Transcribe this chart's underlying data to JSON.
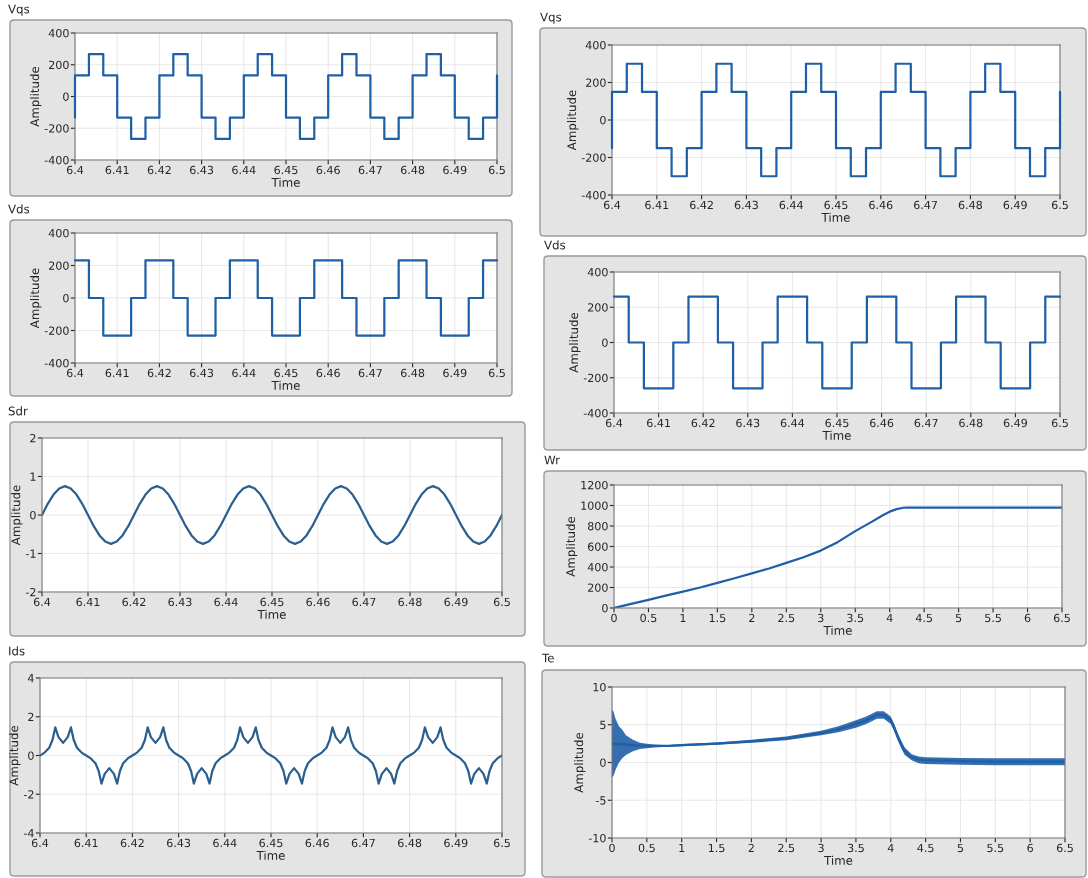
{
  "chart_data": [
    {
      "type": "step",
      "title": "Vqs",
      "xlabel": "Time",
      "ylabel": "Amplitude",
      "xlim": [
        6.4,
        6.5
      ],
      "xticks": [
        6.4,
        6.41,
        6.42,
        6.43,
        6.44,
        6.45,
        6.46,
        6.47,
        6.48,
        6.49,
        6.5
      ],
      "ylim": [
        -400,
        400
      ],
      "yticks": [
        -400,
        -200,
        0,
        200,
        400
      ],
      "grid": true,
      "x": [
        6.4,
        6.4,
        6.4033,
        6.4067,
        6.41,
        6.4133,
        6.4167,
        6.42,
        6.4233,
        6.4267,
        6.43,
        6.4333,
        6.4367,
        6.44,
        6.4433,
        6.4467,
        6.45,
        6.4533,
        6.4567,
        6.46,
        6.4633,
        6.4667,
        6.47,
        6.4733,
        6.4767,
        6.48,
        6.4833,
        6.4867,
        6.49,
        6.4933,
        6.4967,
        6.5
      ],
      "series": [
        {
          "color": "#1f5fa6",
          "values": [
            -133,
            133,
            267,
            133,
            -133,
            -267,
            -133,
            133,
            267,
            133,
            -133,
            -267,
            -133,
            133,
            267,
            133,
            -133,
            -267,
            -133,
            133,
            267,
            133,
            -133,
            -267,
            -133,
            133,
            267,
            133,
            -133,
            -267,
            -133,
            133
          ]
        }
      ]
    },
    {
      "type": "step",
      "title": "Vds",
      "xlabel": "Time",
      "ylabel": "Amplitude",
      "xlim": [
        6.4,
        6.5
      ],
      "xticks": [
        6.4,
        6.41,
        6.42,
        6.43,
        6.44,
        6.45,
        6.46,
        6.47,
        6.48,
        6.49,
        6.5
      ],
      "ylim": [
        -400,
        400
      ],
      "yticks": [
        -400,
        -200,
        0,
        200,
        400
      ],
      "grid": true,
      "x": [
        6.4,
        6.4033,
        6.4067,
        6.41,
        6.4133,
        6.4167,
        6.42,
        6.4233,
        6.4267,
        6.43,
        6.4333,
        6.4367,
        6.44,
        6.4433,
        6.4467,
        6.45,
        6.4533,
        6.4567,
        6.46,
        6.4633,
        6.4667,
        6.47,
        6.4733,
        6.4767,
        6.48,
        6.4833,
        6.4867,
        6.49,
        6.4933,
        6.4967,
        6.5
      ],
      "series": [
        {
          "color": "#1f5fa6",
          "values": [
            231,
            0,
            -231,
            -231,
            0,
            231,
            231,
            0,
            -231,
            -231,
            0,
            231,
            231,
            0,
            -231,
            -231,
            0,
            231,
            231,
            0,
            -231,
            -231,
            0,
            231,
            231,
            0,
            -231,
            -231,
            0,
            231,
            231
          ]
        }
      ]
    },
    {
      "type": "line",
      "title": "Sdr",
      "xlabel": "Time",
      "ylabel": "Amplitude",
      "xlim": [
        6.4,
        6.5
      ],
      "xticks": [
        6.4,
        6.41,
        6.42,
        6.43,
        6.44,
        6.45,
        6.46,
        6.47,
        6.48,
        6.49,
        6.5
      ],
      "ylim": [
        -2,
        2
      ],
      "yticks": [
        -2,
        -1,
        0,
        1,
        2
      ],
      "grid": true,
      "x": [
        6.4,
        6.40125,
        6.4025,
        6.40375,
        6.405,
        6.40625,
        6.4075,
        6.40875,
        6.41,
        6.41125,
        6.4125,
        6.41375,
        6.415,
        6.41625,
        6.4175,
        6.41875,
        6.42,
        6.42125,
        6.4225,
        6.42375,
        6.425,
        6.42625,
        6.4275,
        6.42875,
        6.43,
        6.43125,
        6.4325,
        6.43375,
        6.435,
        6.43625,
        6.4375,
        6.43875,
        6.44,
        6.44125,
        6.4425,
        6.44375,
        6.445,
        6.44625,
        6.4475,
        6.44875,
        6.45,
        6.45125,
        6.4525,
        6.45375,
        6.455,
        6.45625,
        6.4575,
        6.45875,
        6.46,
        6.46125,
        6.4625,
        6.46375,
        6.465,
        6.46625,
        6.4675,
        6.46875,
        6.47,
        6.47125,
        6.4725,
        6.47375,
        6.475,
        6.47625,
        6.4775,
        6.47875,
        6.48,
        6.48125,
        6.4825,
        6.48375,
        6.485,
        6.48625,
        6.4875,
        6.48875,
        6.49,
        6.49125,
        6.4925,
        6.49375,
        6.495,
        6.49625,
        6.4975,
        6.49875,
        6.5
      ],
      "series": [
        {
          "color": "#2a5f8f",
          "values": [
            0,
            0.29,
            0.53,
            0.69,
            0.75,
            0.69,
            0.53,
            0.29,
            0,
            -0.29,
            -0.53,
            -0.69,
            -0.75,
            -0.69,
            -0.53,
            -0.29,
            0,
            0.29,
            0.53,
            0.69,
            0.75,
            0.69,
            0.53,
            0.29,
            0,
            -0.29,
            -0.53,
            -0.69,
            -0.75,
            -0.69,
            -0.53,
            -0.29,
            0,
            0.29,
            0.53,
            0.69,
            0.75,
            0.69,
            0.53,
            0.29,
            0,
            -0.29,
            -0.53,
            -0.69,
            -0.75,
            -0.69,
            -0.53,
            -0.29,
            0,
            0.29,
            0.53,
            0.69,
            0.75,
            0.69,
            0.53,
            0.29,
            0,
            -0.29,
            -0.53,
            -0.69,
            -0.75,
            -0.69,
            -0.53,
            -0.29,
            0,
            0.29,
            0.53,
            0.69,
            0.75,
            0.69,
            0.53,
            0.29,
            0,
            -0.29,
            -0.53,
            -0.69,
            -0.75,
            -0.69,
            -0.53,
            -0.29,
            0
          ]
        }
      ]
    },
    {
      "type": "line",
      "title": "Ids",
      "xlabel": "Time",
      "ylabel": "Amplitude",
      "xlim": [
        6.4,
        6.5
      ],
      "xticks": [
        6.4,
        6.41,
        6.42,
        6.43,
        6.44,
        6.45,
        6.46,
        6.47,
        6.48,
        6.49,
        6.5
      ],
      "ylim": [
        -4,
        4
      ],
      "yticks": [
        -4,
        -2,
        0,
        2,
        4
      ],
      "grid": true,
      "x": [
        6.4,
        6.401,
        6.402,
        6.4027,
        6.4033,
        6.404,
        6.405,
        6.406,
        6.4067,
        6.4073,
        6.408,
        6.409,
        6.41,
        6.411,
        6.412,
        6.4127,
        6.4133,
        6.414,
        6.415,
        6.416,
        6.4167,
        6.4173,
        6.418,
        6.419,
        6.42,
        6.421,
        6.422,
        6.4227,
        6.4233,
        6.424,
        6.425,
        6.426,
        6.4267,
        6.4273,
        6.428,
        6.429,
        6.43,
        6.431,
        6.432,
        6.4327,
        6.4333,
        6.434,
        6.435,
        6.436,
        6.4367,
        6.4373,
        6.438,
        6.439,
        6.44,
        6.441,
        6.442,
        6.4427,
        6.4433,
        6.444,
        6.445,
        6.446,
        6.4467,
        6.4473,
        6.448,
        6.449,
        6.45,
        6.451,
        6.452,
        6.4527,
        6.4533,
        6.454,
        6.455,
        6.456,
        6.4567,
        6.4573,
        6.458,
        6.459,
        6.46,
        6.461,
        6.462,
        6.4627,
        6.4633,
        6.464,
        6.465,
        6.466,
        6.4667,
        6.4673,
        6.468,
        6.469,
        6.47,
        6.471,
        6.472,
        6.4727,
        6.4733,
        6.474,
        6.475,
        6.476,
        6.4767,
        6.4773,
        6.478,
        6.479,
        6.48,
        6.481,
        6.482,
        6.4827,
        6.4833,
        6.484,
        6.485,
        6.486,
        6.4867,
        6.4873,
        6.488,
        6.489,
        6.49,
        6.491,
        6.492,
        6.4927,
        6.4933,
        6.494,
        6.495,
        6.496,
        6.4967,
        6.4973,
        6.498,
        6.499,
        6.5
      ],
      "series": [
        {
          "color": "#2a5f8f",
          "values": [
            0,
            0.15,
            0.4,
            0.8,
            1.45,
            0.95,
            0.65,
            0.95,
            1.45,
            0.8,
            0.4,
            0.15,
            0,
            -0.15,
            -0.4,
            -0.8,
            -1.45,
            -0.95,
            -0.65,
            -0.95,
            -1.45,
            -0.8,
            -0.4,
            -0.15,
            0,
            0.15,
            0.4,
            0.8,
            1.45,
            0.95,
            0.65,
            0.95,
            1.45,
            0.8,
            0.4,
            0.15,
            0,
            -0.15,
            -0.4,
            -0.8,
            -1.45,
            -0.95,
            -0.65,
            -0.95,
            -1.45,
            -0.8,
            -0.4,
            -0.15,
            0,
            0.15,
            0.4,
            0.8,
            1.45,
            0.95,
            0.65,
            0.95,
            1.45,
            0.8,
            0.4,
            0.15,
            0,
            -0.15,
            -0.4,
            -0.8,
            -1.45,
            -0.95,
            -0.65,
            -0.95,
            -1.45,
            -0.8,
            -0.4,
            -0.15,
            0,
            0.15,
            0.4,
            0.8,
            1.45,
            0.95,
            0.65,
            0.95,
            1.45,
            0.8,
            0.4,
            0.15,
            0,
            -0.15,
            -0.4,
            -0.8,
            -1.45,
            -0.95,
            -0.65,
            -0.95,
            -1.45,
            -0.8,
            -0.4,
            -0.15,
            0,
            0.15,
            0.4,
            0.8,
            1.45,
            0.95,
            0.65,
            0.95,
            1.45,
            0.8,
            0.4,
            0.15,
            0,
            -0.15,
            -0.4,
            -0.8,
            -1.45,
            -0.95,
            -0.65,
            -0.95,
            -1.45,
            -0.8,
            -0.4,
            -0.15,
            0
          ]
        }
      ]
    },
    {
      "type": "step",
      "title": "Vqs",
      "xlabel": "Time",
      "ylabel": "Amplitude",
      "xlim": [
        6.4,
        6.5
      ],
      "xticks": [
        6.4,
        6.41,
        6.42,
        6.43,
        6.44,
        6.45,
        6.46,
        6.47,
        6.48,
        6.49,
        6.5
      ],
      "ylim": [
        -400,
        400
      ],
      "yticks": [
        -400,
        -200,
        0,
        200,
        400
      ],
      "grid": true,
      "x": [
        6.4,
        6.4,
        6.4033,
        6.4067,
        6.41,
        6.4133,
        6.4167,
        6.42,
        6.4233,
        6.4267,
        6.43,
        6.4333,
        6.4367,
        6.44,
        6.4433,
        6.4467,
        6.45,
        6.4533,
        6.4567,
        6.46,
        6.4633,
        6.4667,
        6.47,
        6.4733,
        6.4767,
        6.48,
        6.4833,
        6.4867,
        6.49,
        6.4933,
        6.4967,
        6.5
      ],
      "series": [
        {
          "color": "#1f5fa6",
          "values": [
            -150,
            150,
            300,
            150,
            -150,
            -300,
            -150,
            150,
            300,
            150,
            -150,
            -300,
            -150,
            150,
            300,
            150,
            -150,
            -300,
            -150,
            150,
            300,
            150,
            -150,
            -300,
            -150,
            150,
            300,
            150,
            -150,
            -300,
            -150,
            150
          ]
        }
      ]
    },
    {
      "type": "step",
      "title": "Vds",
      "xlabel": "Time",
      "ylabel": "Amplitude",
      "xlim": [
        6.4,
        6.5
      ],
      "xticks": [
        6.4,
        6.41,
        6.42,
        6.43,
        6.44,
        6.45,
        6.46,
        6.47,
        6.48,
        6.49,
        6.5
      ],
      "ylim": [
        -400,
        400
      ],
      "yticks": [
        -400,
        -200,
        0,
        200,
        400
      ],
      "grid": true,
      "x": [
        6.4,
        6.4033,
        6.4067,
        6.41,
        6.4133,
        6.4167,
        6.42,
        6.4233,
        6.4267,
        6.43,
        6.4333,
        6.4367,
        6.44,
        6.4433,
        6.4467,
        6.45,
        6.4533,
        6.4567,
        6.46,
        6.4633,
        6.4667,
        6.47,
        6.4733,
        6.4767,
        6.48,
        6.4833,
        6.4867,
        6.49,
        6.4933,
        6.4967,
        6.5
      ],
      "series": [
        {
          "color": "#1f5fa6",
          "values": [
            260,
            0,
            -260,
            -260,
            0,
            260,
            260,
            0,
            -260,
            -260,
            0,
            260,
            260,
            0,
            -260,
            -260,
            0,
            260,
            260,
            0,
            -260,
            -260,
            0,
            260,
            260,
            0,
            -260,
            -260,
            0,
            260,
            260
          ]
        }
      ]
    },
    {
      "type": "line",
      "title": "Wr",
      "xlabel": "Time",
      "ylabel": "Amplitude",
      "xlim": [
        0,
        6.5
      ],
      "xticks": [
        0,
        0.5,
        1,
        1.5,
        2,
        2.5,
        3,
        3.5,
        4,
        4.5,
        5,
        5.5,
        6,
        6.5
      ],
      "ylim": [
        0,
        1200
      ],
      "yticks": [
        0,
        200,
        400,
        600,
        800,
        1000,
        1200
      ],
      "grid": true,
      "x": [
        0,
        0.25,
        0.5,
        0.75,
        1,
        1.25,
        1.5,
        1.75,
        2,
        2.25,
        2.5,
        2.75,
        3,
        3.25,
        3.5,
        3.75,
        3.9,
        4,
        4.1,
        4.2,
        4.25,
        4.5,
        5,
        5.5,
        6,
        6.5
      ],
      "series": [
        {
          "color": "#1f5fa6",
          "values": [
            0,
            40,
            80,
            120,
            160,
            200,
            245,
            290,
            338,
            385,
            440,
            495,
            560,
            645,
            750,
            845,
            905,
            940,
            965,
            978,
            980,
            980,
            980,
            980,
            980,
            980
          ]
        }
      ]
    },
    {
      "type": "line",
      "title": "Te",
      "xlabel": "Time",
      "ylabel": "Amplitude",
      "xlim": [
        0,
        6.5
      ],
      "xticks": [
        0,
        0.5,
        1,
        1.5,
        2,
        2.5,
        3,
        3.5,
        4,
        4.5,
        5,
        5.5,
        6,
        6.5
      ],
      "ylim": [
        -10,
        10
      ],
      "yticks": [
        -10,
        -5,
        0,
        5,
        10
      ],
      "grid": true,
      "x": [
        0,
        0.02,
        0.05,
        0.1,
        0.15,
        0.2,
        0.3,
        0.4,
        0.5,
        0.6,
        0.8,
        1,
        1.5,
        2,
        2.5,
        3,
        3.25,
        3.5,
        3.65,
        3.8,
        3.9,
        4,
        4.05,
        4.1,
        4.15,
        4.2,
        4.3,
        4.4,
        4.5,
        5,
        5.5,
        6,
        6.5
      ],
      "series": [
        {
          "color": "#1f5fa6",
          "values": [
            2.5,
            2.5,
            2.5,
            2.4,
            2.4,
            2.4,
            2.3,
            2.2,
            2.2,
            2.2,
            2.2,
            2.3,
            2.5,
            2.8,
            3.2,
            3.9,
            4.4,
            5.1,
            5.6,
            6.3,
            6.3,
            5.6,
            4.6,
            3.4,
            2.4,
            1.5,
            0.7,
            0.4,
            0.3,
            0.2,
            0.1,
            0.1,
            0.1
          ],
          "lower": [
            -2,
            -1.8,
            -1,
            0,
            0.6,
            1,
            1.5,
            1.8,
            1.9,
            2,
            2.1,
            2.15,
            2.35,
            2.6,
            2.95,
            3.6,
            4.0,
            4.6,
            5.1,
            5.8,
            5.8,
            5.1,
            4.1,
            2.9,
            1.9,
            1.0,
            0.3,
            -0.1,
            -0.2,
            -0.3,
            -0.35,
            -0.35,
            -0.35
          ],
          "upper": [
            7,
            6.8,
            5.8,
            4.8,
            4.3,
            3.6,
            3,
            2.6,
            2.5,
            2.4,
            2.3,
            2.45,
            2.65,
            3.0,
            3.45,
            4.2,
            4.8,
            5.6,
            6.1,
            6.8,
            6.8,
            6.1,
            5.1,
            3.9,
            2.9,
            2.0,
            1.1,
            0.8,
            0.7,
            0.6,
            0.55,
            0.55,
            0.55
          ]
        }
      ]
    }
  ]
}
